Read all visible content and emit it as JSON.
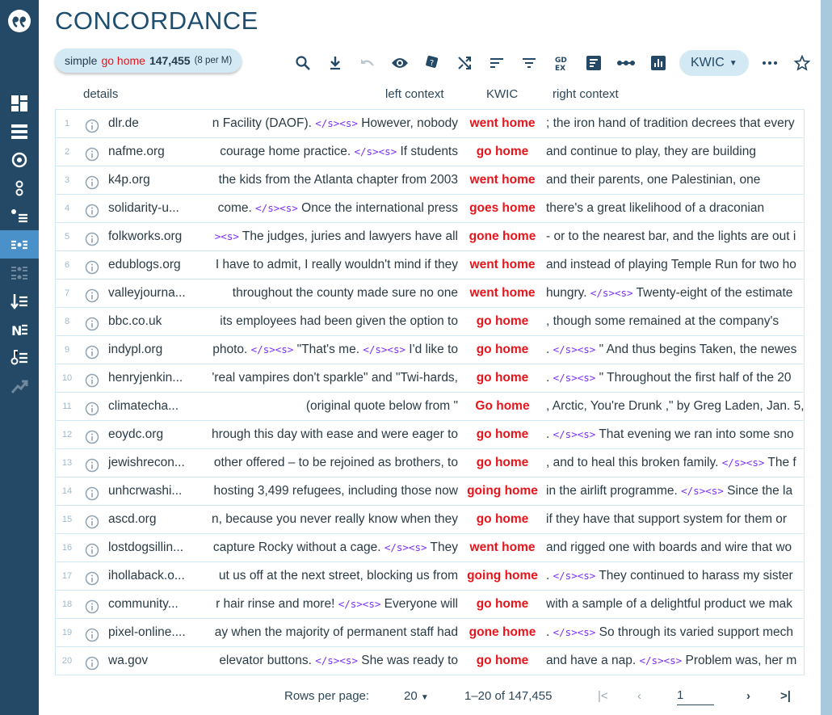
{
  "app": {
    "title": "CONCORDANCE",
    "logo_icon": "quote-icon"
  },
  "sidebar": {
    "items": [
      {
        "icon": "dashboard-icon"
      },
      {
        "icon": "list-icon"
      },
      {
        "icon": "target-icon"
      },
      {
        "icon": "collocation-icon"
      },
      {
        "icon": "wordlist-icon"
      },
      {
        "icon": "concordance-icon",
        "active": true
      },
      {
        "icon": "parallel-concordance-icon",
        "disabled": true
      },
      {
        "icon": "sort-list-icon"
      },
      {
        "icon": "ngrams-icon"
      },
      {
        "icon": "keywords-icon"
      },
      {
        "icon": "trends-icon",
        "disabled": true
      }
    ]
  },
  "query": {
    "type": "simple",
    "keyword": "go home",
    "count": "147,455",
    "per_million": "(8 per M)"
  },
  "toolbar": {
    "view_label": "KWIC"
  },
  "colors": {
    "accent": "#234966",
    "keyword": "#e8141b",
    "tag": "#7b2ff7",
    "chip": "#d3e9f4"
  },
  "columns": {
    "details": "details",
    "left": "left context",
    "kwic": "KWIC",
    "right": "right context"
  },
  "rows": [
    {
      "n": "1",
      "src": "dlr.de",
      "left": "n Facility (DAOF). </s><s> However, nobody",
      "kwic": "went home",
      "right": "; the iron hand of tradition decrees that every"
    },
    {
      "n": "2",
      "src": "nafme.org",
      "left": "courage home practice. </s><s> If students",
      "kwic": "go home",
      "right": "and continue to play, they are building"
    },
    {
      "n": "3",
      "src": "k4p.org",
      "left": "the kids from the Atlanta chapter from 2003",
      "kwic": "went home",
      "right": "and their parents, one Palestinian, one"
    },
    {
      "n": "4",
      "src": "solidarity-u...",
      "left": "come. </s><s> Once the international press",
      "kwic": "goes home",
      "right": "there's a great likelihood of a draconian"
    },
    {
      "n": "5",
      "src": "folkworks.org",
      "left": "><s> The judges, juries and lawyers have all",
      "kwic": "gone home",
      "right": "- or to the nearest bar, and the lights are out i"
    },
    {
      "n": "6",
      "src": "edublogs.org",
      "left": "I have to admit, I really wouldn't mind if they",
      "kwic": "went home",
      "right": "and instead of playing Temple Run for two ho"
    },
    {
      "n": "7",
      "src": "valleyjourna...",
      "left": "throughout the county made sure no one",
      "kwic": "went home",
      "right": "hungry. </s><s> Twenty-eight of the estimate"
    },
    {
      "n": "8",
      "src": "bbc.co.uk",
      "left": "its employees had been given the option to",
      "kwic": "go home",
      "right": ", though some remained at the company's"
    },
    {
      "n": "9",
      "src": "indypl.org",
      "left": "photo. </s><s> \"That's me. </s><s> I'd like to",
      "kwic": "go home",
      "right": ". </s><s> \" And thus begins Taken, the newes"
    },
    {
      "n": "10",
      "src": "henryjenkin...",
      "left": "'real vampires don't sparkle\" and \"Twi-hards,",
      "kwic": "go home",
      "right": ". </s><s> \" Throughout the first half of the 20"
    },
    {
      "n": "11",
      "src": "climatecha...",
      "left": "(original quote below from \"",
      "kwic": "Go home",
      "right": ", Arctic, You're Drunk ,\" by Greg Laden, Jan. 5,"
    },
    {
      "n": "12",
      "src": "eoydc.org",
      "left": "hrough this day with ease and were eager to",
      "kwic": "go home",
      "right": ". </s><s> That evening we ran into some sno"
    },
    {
      "n": "13",
      "src": "jewishrecon...",
      "left": "other offered – to be rejoined as brothers, to",
      "kwic": "go home",
      "right": ", and to heal this broken family. </s><s> The f"
    },
    {
      "n": "14",
      "src": "unhcrwashi...",
      "left": "hosting 3,499 refugees, including those now",
      "kwic": "going home",
      "right": "in the airlift programme. </s><s> Since the la"
    },
    {
      "n": "15",
      "src": "ascd.org",
      "left": "n, because you never really know when they",
      "kwic": "go home",
      "right": "if they have that support system for them or"
    },
    {
      "n": "16",
      "src": "lostdogsillin...",
      "left": "capture Rocky without a cage. </s><s> They",
      "kwic": "went home",
      "right": "and rigged one with boards and wire that wo"
    },
    {
      "n": "17",
      "src": "ihollaback.o...",
      "left": "ut us off at the next street, blocking us from",
      "kwic": "going home",
      "right": ". </s><s> They continued to harass my sister"
    },
    {
      "n": "18",
      "src": "community...",
      "left": "r hair rinse and more! </s><s> Everyone will",
      "kwic": "go home",
      "right": "with a sample of a delightful product we mak"
    },
    {
      "n": "19",
      "src": "pixel-online....",
      "left": "ay when the majority of permanent staff had",
      "kwic": "gone home",
      "right": ". </s><s> So through its varied support mech"
    },
    {
      "n": "20",
      "src": "wa.gov",
      "left": "elevator buttons. </s><s> She was ready to",
      "kwic": "go home",
      "right": "and have a nap. </s><s> Problem was, her m"
    }
  ],
  "pager": {
    "rows_label": "Rows per page:",
    "rows_value": "20",
    "range": "1–20 of 147,455",
    "page": "1"
  }
}
